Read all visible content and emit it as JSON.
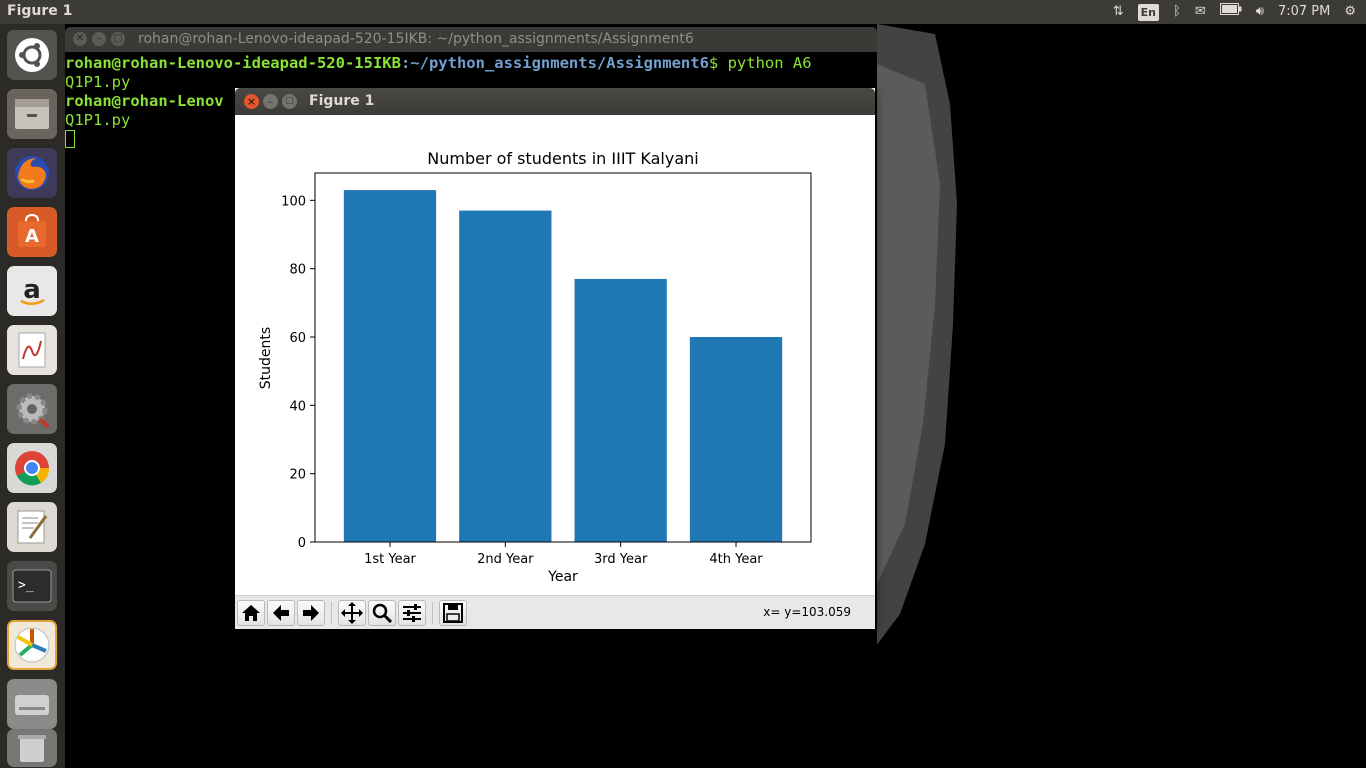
{
  "top_panel": {
    "app_title": "Figure 1",
    "keyboard_layout": "En",
    "clock": "7:07 PM"
  },
  "launcher": {
    "items": [
      "ubuntu-dash",
      "files",
      "firefox",
      "software-center",
      "amazon",
      "document-viewer",
      "system-settings",
      "chrome",
      "text-editor",
      "terminal",
      "matplotlib-figure",
      "disk",
      "trash"
    ]
  },
  "terminal": {
    "title": "rohan@rohan-Lenovo-ideapad-520-15IKB: ~/python_assignments/Assignment6",
    "line1_user": "rohan@rohan-Lenovo-ideapad-520-15IKB",
    "line1_path": ":~/python_assignments/Assignment6",
    "line1_cmd": "$ python A6",
    "line2": "Q1P1.py",
    "line3_user": "rohan@rohan-Lenov",
    "line4": "Q1P1.py"
  },
  "figure": {
    "window_title": "Figure 1",
    "coord_readout": "x= y=103.059",
    "toolbar": {
      "home": "home-icon",
      "back": "back-arrow-icon",
      "forward": "forward-arrow-icon",
      "pan": "pan-icon",
      "zoom": "zoom-icon",
      "configure": "configure-subplots-icon",
      "save": "save-icon"
    }
  },
  "chart_data": {
    "type": "bar",
    "title": "Number of students in IIIT Kalyani",
    "xlabel": "Year",
    "ylabel": "Students",
    "categories": [
      "1st Year",
      "2nd Year",
      "3rd Year",
      "4th Year"
    ],
    "values": [
      103,
      97,
      77,
      60
    ],
    "ylim": [
      0,
      108
    ],
    "yticks": [
      0,
      20,
      40,
      60,
      80,
      100
    ],
    "bar_color": "#1f77b4",
    "grid": false
  }
}
